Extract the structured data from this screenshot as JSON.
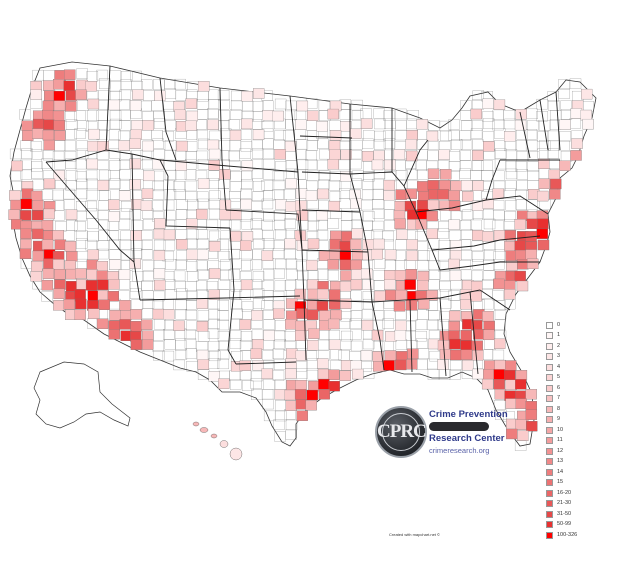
{
  "legend": {
    "entries": [
      {
        "label": "0",
        "color": "#ffffff"
      },
      {
        "label": "1",
        "color": "#fff6f6"
      },
      {
        "label": "2",
        "color": "#ffeeee"
      },
      {
        "label": "3",
        "color": "#fde6e6"
      },
      {
        "label": "4",
        "color": "#fcdede"
      },
      {
        "label": "5",
        "color": "#fbd5d5"
      },
      {
        "label": "6",
        "color": "#facccc"
      },
      {
        "label": "7",
        "color": "#f8c2c2"
      },
      {
        "label": "8",
        "color": "#f7b8b8"
      },
      {
        "label": "9",
        "color": "#f6afaf"
      },
      {
        "label": "10",
        "color": "#f4a6a6"
      },
      {
        "label": "11",
        "color": "#f39c9c"
      },
      {
        "label": "12",
        "color": "#f29292"
      },
      {
        "label": "13",
        "color": "#f08888"
      },
      {
        "label": "14",
        "color": "#ee7d7d"
      },
      {
        "label": "15",
        "color": "#ec7272"
      },
      {
        "label": "16-20",
        "color": "#ea6666"
      },
      {
        "label": "21-30",
        "color": "#e85858"
      },
      {
        "label": "31-50",
        "color": "#e64848"
      },
      {
        "label": "50-99",
        "color": "#e83030"
      },
      {
        "label": "100-326",
        "color": "#ff0000"
      }
    ]
  },
  "logo": {
    "seal_text": "CPRC",
    "title_line1": "Crime Prevention",
    "title_line2": "Research Center",
    "url": "crimeresearch.org"
  },
  "credit": "Created with mapchart.net ©",
  "colors": {
    "border": "#555555",
    "state_border": "#222222",
    "hotspot": "#ff0000"
  }
}
